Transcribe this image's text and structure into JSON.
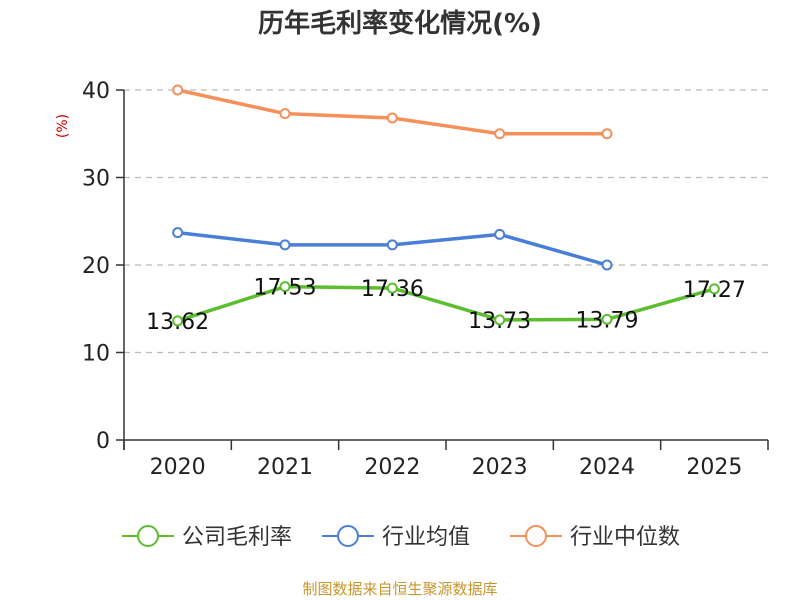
{
  "chart_data": {
    "type": "line",
    "title": "历年毛利率变化情况(%)",
    "xlabel": "",
    "ylabel": "(%)",
    "categories": [
      "2020",
      "2021",
      "2022",
      "2023",
      "2024",
      "2025"
    ],
    "yticks": [
      "0",
      "10",
      "20",
      "30",
      "40"
    ],
    "ylim": [
      0,
      40
    ],
    "grid": true,
    "legend_position": "bottom",
    "series": [
      {
        "name": "公司毛利率",
        "color": "#5cbd2e",
        "values": [
          13.62,
          17.53,
          17.36,
          13.73,
          13.79,
          17.27
        ],
        "labels": [
          "13.62",
          "17.53",
          "17.36",
          "13.73",
          "13.79",
          "17.27"
        ]
      },
      {
        "name": "行业均值",
        "color": "#4a7fd8",
        "values": [
          23.7,
          22.3,
          22.3,
          23.5,
          20.0,
          null
        ]
      },
      {
        "name": "行业中位数",
        "color": "#f5905a",
        "values": [
          40.0,
          37.3,
          36.8,
          35.0,
          35.0,
          null
        ]
      }
    ]
  },
  "source_text": "制图数据来自恒生聚源数据库",
  "colors": {
    "ylabel": "#cc0000",
    "source": "#c8962e"
  }
}
